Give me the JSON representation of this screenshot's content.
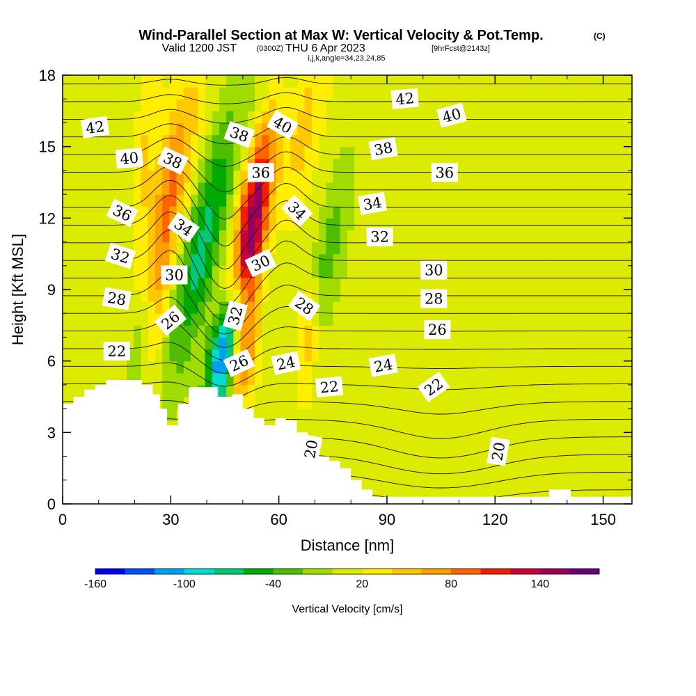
{
  "chart_data": {
    "type": "heatmap",
    "title": "Wind-Parallel Section at Max W: Vertical Velocity & Pot.Temp.",
    "title_mark": "(C)",
    "subtitle_valid": "Valid 1200 JST",
    "subtitle_utc": "(0300Z)",
    "subtitle_date": "THU 6 Apr 2023",
    "subtitle_fcst": "[9hrFcst@2143z]",
    "subtitle_params": "i,j,k,angle=34,23,24,85",
    "xlabel": "Distance [nm]",
    "ylabel": "Height [Kft MSL]",
    "xlim": [
      0,
      158
    ],
    "ylim": [
      0,
      18
    ],
    "x_ticks": [
      "0",
      "30",
      "60",
      "90",
      "120",
      "150"
    ],
    "y_ticks": [
      "0",
      "3",
      "6",
      "9",
      "12",
      "15",
      "18"
    ],
    "colorbar_label": "Vertical Velocity [cm/s]",
    "colorbar_ticks": [
      "-160",
      "-100",
      "-40",
      "20",
      "80",
      "140"
    ],
    "colorbar_levels": [
      -160,
      -140,
      -120,
      -100,
      -80,
      -60,
      -40,
      -20,
      0,
      20,
      40,
      60,
      80,
      100,
      120,
      140,
      160
    ],
    "colorbar_colors": [
      "#0000f0",
      "#0050f0",
      "#00a0f0",
      "#00dcd0",
      "#00c878",
      "#00aa00",
      "#50be00",
      "#a0dc00",
      "#dceb00",
      "#ffee00",
      "#ffc800",
      "#ffa000",
      "#ff6400",
      "#f01e00",
      "#c8003c",
      "#96005a",
      "#640078"
    ],
    "terrain": [
      [
        0,
        4.2
      ],
      [
        3,
        4.5
      ],
      [
        6,
        4.8
      ],
      [
        9,
        5.0
      ],
      [
        12,
        5.2
      ],
      [
        22,
        5.0
      ],
      [
        25,
        4.6
      ],
      [
        27,
        4.0
      ],
      [
        29,
        3.3
      ],
      [
        32,
        4.2
      ],
      [
        35,
        4.9
      ],
      [
        41,
        4.9
      ],
      [
        43,
        4.5
      ],
      [
        47,
        4.6
      ],
      [
        50,
        4.0
      ],
      [
        53,
        3.6
      ],
      [
        56,
        3.3
      ],
      [
        59,
        3.6
      ],
      [
        62,
        3.5
      ],
      [
        65,
        3.0
      ],
      [
        68,
        2.5
      ],
      [
        71,
        2.0
      ],
      [
        74,
        1.8
      ],
      [
        77,
        1.5
      ],
      [
        80,
        1.0
      ],
      [
        83,
        0.6
      ],
      [
        86,
        0.3
      ],
      [
        89,
        0.3
      ],
      [
        134,
        0.3
      ],
      [
        135,
        0.6
      ],
      [
        140,
        0.6
      ],
      [
        141,
        0.3
      ],
      [
        158,
        0.3
      ]
    ],
    "w_features": [
      {
        "x": 53,
        "y": 12.0,
        "sx": 3.2,
        "sy": 3.5,
        "tilt": -0.19,
        "value": 150
      },
      {
        "x": 50,
        "y": 6.2,
        "sx": 2.8,
        "sy": 1.6,
        "tilt": -0.19,
        "value": 70
      },
      {
        "x": 45,
        "y": 6.3,
        "sx": 3.0,
        "sy": 1.8,
        "tilt": -0.25,
        "value": -160
      },
      {
        "x": 39,
        "y": 11.0,
        "sx": 4.0,
        "sy": 4.0,
        "tilt": -0.32,
        "value": -80
      },
      {
        "x": 30,
        "y": 13.0,
        "sx": 3.5,
        "sy": 3.5,
        "tilt": -0.25,
        "value": 70
      },
      {
        "x": 26,
        "y": 8.0,
        "sx": 2.5,
        "sy": 2.5,
        "tilt": -0.16,
        "value": 30
      },
      {
        "x": 22,
        "y": 7.0,
        "sx": 2.5,
        "sy": 1.8,
        "tilt": -0.19,
        "value": -40
      },
      {
        "x": 60,
        "y": 13.0,
        "sx": 3.5,
        "sy": 4.0,
        "tilt": -0.22,
        "value": -30
      },
      {
        "x": 65,
        "y": 15.0,
        "sx": 3.5,
        "sy": 3.0,
        "tilt": -0.3,
        "value": 50
      },
      {
        "x": 68,
        "y": 7.0,
        "sx": 2.0,
        "sy": 1.8,
        "tilt": -0.1,
        "value": 60
      },
      {
        "x": 73,
        "y": 10.0,
        "sx": 3.5,
        "sy": 3.5,
        "tilt": -0.32,
        "value": -40
      },
      {
        "x": 55,
        "y": 16.5,
        "sx": 2.5,
        "sy": 2.0,
        "tilt": -0.25,
        "value": -40
      },
      {
        "x": 23,
        "y": 15.0,
        "sx": 2.0,
        "sy": 2.5,
        "tilt": -0.1,
        "value": 30
      },
      {
        "x": 155,
        "y": 2.0,
        "sx": 3.0,
        "sy": 3.0,
        "tilt": 0,
        "value": -15
      }
    ],
    "theta_levels": [
      20,
      21,
      22,
      23,
      24,
      25,
      26,
      27,
      28,
      29,
      30,
      31,
      32,
      33,
      34,
      35,
      36,
      37,
      38,
      39,
      40,
      41,
      42,
      43
    ],
    "contour_labels": [
      {
        "text": "42",
        "x": 9,
        "y": 15.8,
        "rot": -8
      },
      {
        "text": "40",
        "x": 18.5,
        "y": 14.5,
        "rot": -5
      },
      {
        "text": "36",
        "x": 16.5,
        "y": 12.2,
        "rot": 25
      },
      {
        "text": "32",
        "x": 16,
        "y": 10.4,
        "rot": 18
      },
      {
        "text": "28",
        "x": 15,
        "y": 8.6,
        "rot": 10
      },
      {
        "text": "22",
        "x": 15,
        "y": 6.4,
        "rot": 0
      },
      {
        "text": "38",
        "x": 30.5,
        "y": 14.4,
        "rot": 25
      },
      {
        "text": "34",
        "x": 33.5,
        "y": 11.6,
        "rot": 35
      },
      {
        "text": "30",
        "x": 31,
        "y": 9.6,
        "rot": 0
      },
      {
        "text": "26",
        "x": 30,
        "y": 7.7,
        "rot": -40
      },
      {
        "text": "38",
        "x": 49,
        "y": 15.5,
        "rot": 20
      },
      {
        "text": "36",
        "x": 55,
        "y": 13.9,
        "rot": 0
      },
      {
        "text": "40",
        "x": 61,
        "y": 15.9,
        "rot": 30
      },
      {
        "text": "34",
        "x": 65,
        "y": 12.3,
        "rot": 45
      },
      {
        "text": "30",
        "x": 55,
        "y": 10.1,
        "rot": -25
      },
      {
        "text": "32",
        "x": 48,
        "y": 7.9,
        "rot": -75
      },
      {
        "text": "26",
        "x": 49,
        "y": 5.9,
        "rot": -25
      },
      {
        "text": "24",
        "x": 62,
        "y": 5.9,
        "rot": -12
      },
      {
        "text": "28",
        "x": 67,
        "y": 8.3,
        "rot": 35
      },
      {
        "text": "22",
        "x": 74,
        "y": 4.9,
        "rot": -5
      },
      {
        "text": "20",
        "x": 69,
        "y": 2.3,
        "rot": -80
      },
      {
        "text": "42",
        "x": 95,
        "y": 17.0,
        "rot": -5
      },
      {
        "text": "40",
        "x": 108,
        "y": 16.3,
        "rot": -15
      },
      {
        "text": "38",
        "x": 89,
        "y": 14.9,
        "rot": -10
      },
      {
        "text": "36",
        "x": 106,
        "y": 13.9,
        "rot": 0
      },
      {
        "text": "34",
        "x": 86,
        "y": 12.6,
        "rot": -10
      },
      {
        "text": "32",
        "x": 88,
        "y": 11.2,
        "rot": 0
      },
      {
        "text": "30",
        "x": 103,
        "y": 9.8,
        "rot": 0
      },
      {
        "text": "28",
        "x": 103,
        "y": 8.6,
        "rot": 0
      },
      {
        "text": "26",
        "x": 104,
        "y": 7.3,
        "rot": 0
      },
      {
        "text": "24",
        "x": 89,
        "y": 5.8,
        "rot": -10
      },
      {
        "text": "22",
        "x": 103,
        "y": 4.9,
        "rot": -35
      },
      {
        "text": "20",
        "x": 121,
        "y": 2.2,
        "rot": -80
      }
    ]
  }
}
